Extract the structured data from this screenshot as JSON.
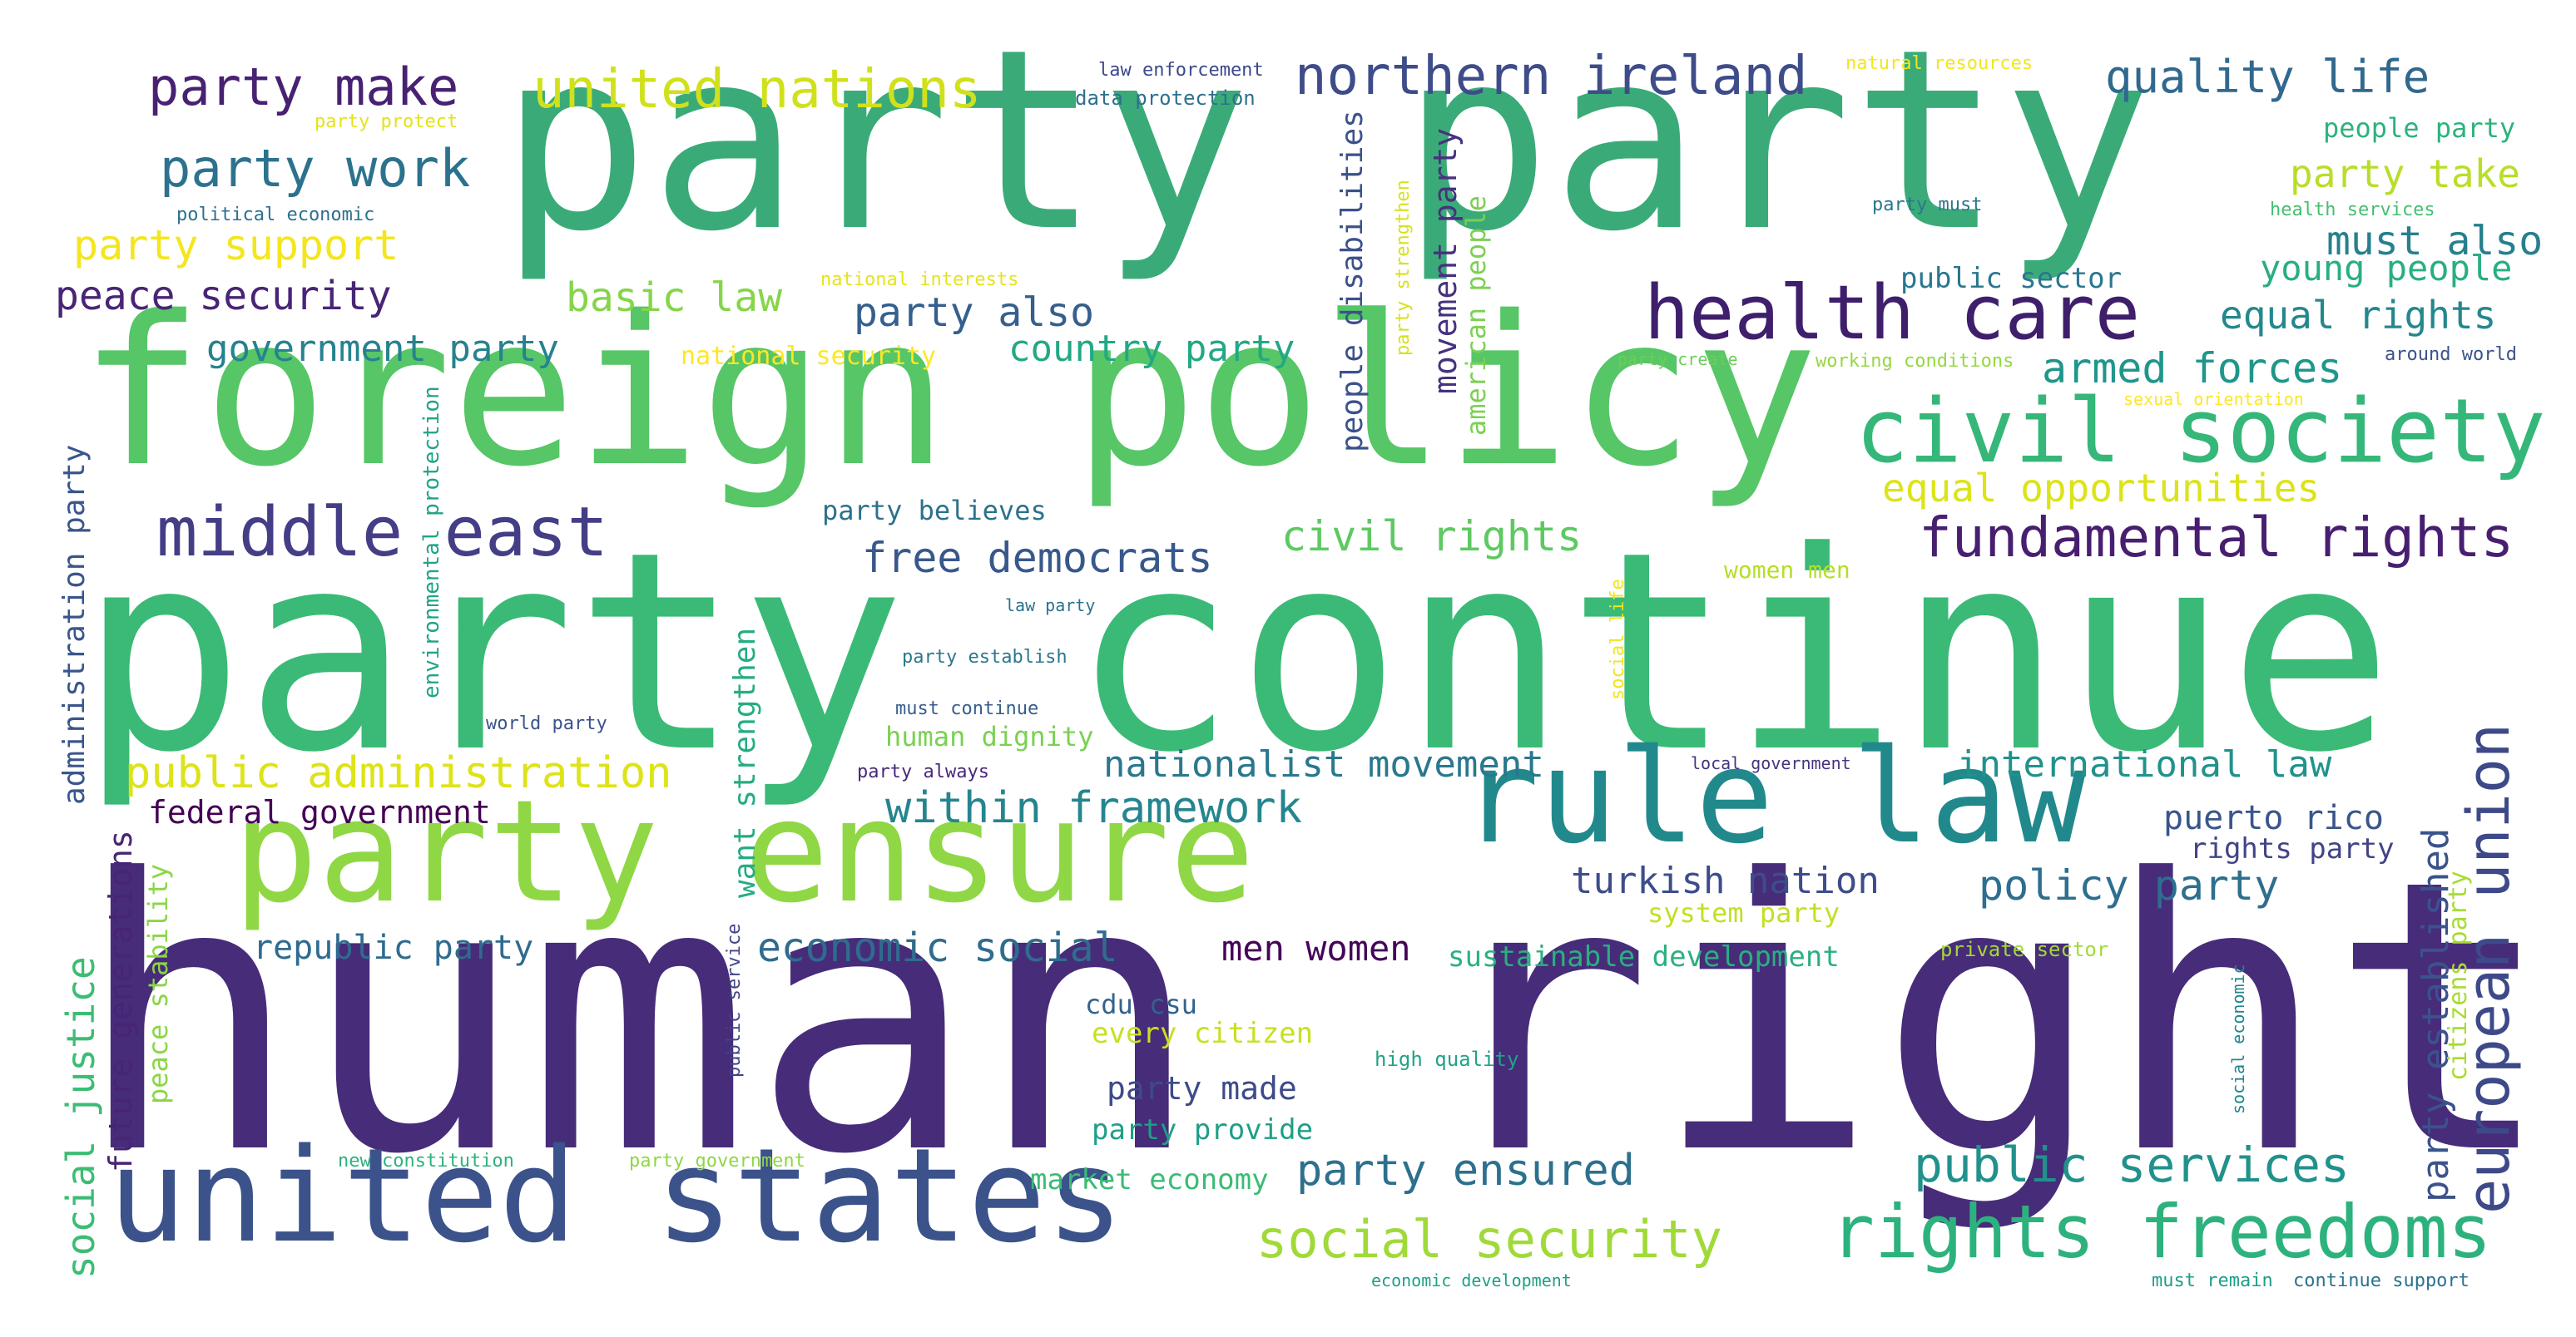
{
  "words": [
    {
      "id": "w-human-rights",
      "text": "human rights",
      "color": "#472c7a"
    },
    {
      "id": "w-party-continue",
      "text": "party continue",
      "color": "#3aba76"
    },
    {
      "id": "w-party-party",
      "text": "party party",
      "color": "#3aab78"
    },
    {
      "id": "w-foreign-policy",
      "text": "foreign policy",
      "color": "#56c667"
    },
    {
      "id": "w-party-ensure",
      "text": "party ensure",
      "color": "#8fd744"
    },
    {
      "id": "w-united-states",
      "text": "united states",
      "color": "#3b528b"
    },
    {
      "id": "w-rule-law",
      "text": "rule law",
      "color": "#21898c"
    },
    {
      "id": "w-civil-society",
      "text": "civil society",
      "color": "#35b779"
    },
    {
      "id": "w-rights-freedoms",
      "text": "rights freedoms",
      "color": "#2db27d"
    },
    {
      "id": "w-health-care",
      "text": "health care",
      "color": "#3f1f6b"
    },
    {
      "id": "w-middle-east",
      "text": "middle east",
      "color": "#433e85"
    },
    {
      "id": "w-european-union",
      "text": "european union",
      "color": "#3e4989"
    },
    {
      "id": "w-fundamental-rights",
      "text": "fundamental rights",
      "color": "#481f70"
    },
    {
      "id": "w-northern-ireland",
      "text": "northern ireland",
      "color": "#3e4c8a"
    },
    {
      "id": "w-united-nations",
      "text": "united nations",
      "color": "#d0e11c"
    },
    {
      "id": "w-party-make",
      "text": "party make",
      "color": "#482173"
    },
    {
      "id": "w-party-work",
      "text": "party work",
      "color": "#2c728e"
    },
    {
      "id": "w-quality-life",
      "text": "quality life",
      "color": "#31688e"
    },
    {
      "id": "w-social-security",
      "text": "social security",
      "color": "#a0da39"
    },
    {
      "id": "w-public-services",
      "text": "public services",
      "color": "#21918c"
    },
    {
      "id": "w-party-ensured",
      "text": "party ensured",
      "color": "#2d708e"
    },
    {
      "id": "w-within-framework",
      "text": "within framework",
      "color": "#25858e"
    },
    {
      "id": "w-public-administration",
      "text": "public administration",
      "color": "#dde318"
    },
    {
      "id": "w-free-democrats",
      "text": "free democrats",
      "color": "#38588c"
    },
    {
      "id": "w-civil-rights",
      "text": "civil rights",
      "color": "#5ec962"
    },
    {
      "id": "w-economic-social",
      "text": "economic social",
      "color": "#2f6c8e"
    },
    {
      "id": "w-nationalist-movement",
      "text": "nationalist movement",
      "color": "#2a788e"
    },
    {
      "id": "w-international-law",
      "text": "international law",
      "color": "#20928c"
    },
    {
      "id": "w-policy-party",
      "text": "policy party",
      "color": "#2e6e8e"
    },
    {
      "id": "w-turkish-nation",
      "text": "turkish nation",
      "color": "#3d4d8a"
    },
    {
      "id": "w-armed-forces",
      "text": "armed forces",
      "color": "#1f968b"
    },
    {
      "id": "w-equal-opportunities",
      "text": "equal opportunities",
      "color": "#dce319"
    },
    {
      "id": "w-party-support",
      "text": "party support",
      "color": "#f4e61e"
    },
    {
      "id": "w-peace-security",
      "text": "peace security",
      "color": "#482576"
    },
    {
      "id": "w-basic-law",
      "text": "basic law",
      "color": "#86d549"
    },
    {
      "id": "w-party-also",
      "text": "party also",
      "color": "#355f8d"
    },
    {
      "id": "w-country-party",
      "text": "country party",
      "color": "#22a884"
    },
    {
      "id": "w-government-party",
      "text": "government party",
      "color": "#26828e"
    },
    {
      "id": "w-party-take",
      "text": "party take",
      "color": "#b8de29"
    },
    {
      "id": "w-must-also",
      "text": "must also",
      "color": "#277f8e"
    },
    {
      "id": "w-young-people",
      "text": "young people",
      "color": "#29af7f"
    },
    {
      "id": "w-equal-rights",
      "text": "equal rights",
      "color": "#23888e"
    },
    {
      "id": "w-public-sector",
      "text": "public sector",
      "color": "#2a768e"
    },
    {
      "id": "w-people-party",
      "text": "people party",
      "color": "#2db27d"
    },
    {
      "id": "w-federal-government",
      "text": "federal government",
      "color": "#440154"
    },
    {
      "id": "w-republic-party",
      "text": "republic party",
      "color": "#2f6b8e"
    },
    {
      "id": "w-men-women",
      "text": "men women",
      "color": "#450559"
    },
    {
      "id": "w-sustainable-development",
      "text": "sustainable development",
      "color": "#2ab07f"
    },
    {
      "id": "w-puerto-rico",
      "text": "puerto rico",
      "color": "#39558c"
    },
    {
      "id": "w-rights-party",
      "text": "rights party",
      "color": "#414487"
    },
    {
      "id": "w-system-party",
      "text": "system party",
      "color": "#c2df23"
    },
    {
      "id": "w-cdu-csu",
      "text": "cdu csu",
      "color": "#33638d"
    },
    {
      "id": "w-every-citizen",
      "text": "every citizen",
      "color": "#c8e020"
    },
    {
      "id": "w-party-made",
      "text": "party made",
      "color": "#3e4a89"
    },
    {
      "id": "w-party-provide",
      "text": "party provide",
      "color": "#1f9f88"
    },
    {
      "id": "w-market-economy",
      "text": "market economy",
      "color": "#3bbb75"
    },
    {
      "id": "w-human-dignity",
      "text": "human dignity",
      "color": "#7ad151"
    },
    {
      "id": "w-party-believes",
      "text": "party believes",
      "color": "#2c718e"
    },
    {
      "id": "w-women-men",
      "text": "women men",
      "color": "#b5de2b"
    },
    {
      "id": "w-high-quality",
      "text": "high quality",
      "color": "#20a386"
    },
    {
      "id": "w-private-sector",
      "text": "private sector",
      "color": "#a2da37"
    },
    {
      "id": "w-national-security",
      "text": "national security",
      "color": "#fde725"
    },
    {
      "id": "w-law-enforcement",
      "text": "law enforcement",
      "color": "#3e4989"
    },
    {
      "id": "w-data-protection",
      "text": "data protection",
      "color": "#2d708e"
    },
    {
      "id": "w-natural-resources",
      "text": "natural resources",
      "color": "#f4e61e"
    },
    {
      "id": "w-party-protect",
      "text": "party protect",
      "color": "#e2e418"
    },
    {
      "id": "w-political-economic",
      "text": "political economic",
      "color": "#2d708e"
    },
    {
      "id": "w-national-interests",
      "text": "national interests",
      "color": "#e5e419"
    },
    {
      "id": "w-party-must",
      "text": "party must",
      "color": "#2a768e"
    },
    {
      "id": "w-health-services",
      "text": "health services",
      "color": "#44bf70"
    },
    {
      "id": "w-party-create",
      "text": "party create",
      "color": "#6ccd5a"
    },
    {
      "id": "w-working-conditions",
      "text": "working conditions",
      "color": "#95d840"
    },
    {
      "id": "w-around-world",
      "text": "around world",
      "color": "#3b528b"
    },
    {
      "id": "w-sexual-orientation",
      "text": "sexual orientation",
      "color": "#fde725"
    },
    {
      "id": "w-law-party",
      "text": "law party",
      "color": "#2c728e"
    },
    {
      "id": "w-party-establish",
      "text": "party establish",
      "color": "#2a788e"
    },
    {
      "id": "w-must-continue",
      "text": "must continue",
      "color": "#365d8d"
    },
    {
      "id": "w-world-party",
      "text": "world party",
      "color": "#3b528b"
    },
    {
      "id": "w-party-always",
      "text": "party always",
      "color": "#482878"
    },
    {
      "id": "w-local-government",
      "text": "local government",
      "color": "#46337e"
    },
    {
      "id": "w-new-constitution",
      "text": "new constitution",
      "color": "#2db27d"
    },
    {
      "id": "w-party-government",
      "text": "party government",
      "color": "#8fd744"
    },
    {
      "id": "w-economic-development",
      "text": "economic development",
      "color": "#1fa088"
    },
    {
      "id": "w-must-remain",
      "text": "must remain",
      "color": "#1f9e89"
    },
    {
      "id": "w-continue-support",
      "text": "continue support",
      "color": "#2c728e"
    },
    {
      "id": "w-administration-party",
      "text": "administration party",
      "color": "#39568c"
    },
    {
      "id": "w-environmental-protection",
      "text": "environmental protection",
      "color": "#20a486"
    },
    {
      "id": "w-want-strengthen",
      "text": "want strengthen",
      "color": "#25ac82"
    },
    {
      "id": "w-social-justice",
      "text": "social justice",
      "color": "#3dbc74"
    },
    {
      "id": "w-future-generations",
      "text": "future generations",
      "color": "#482475"
    },
    {
      "id": "w-peace-stability",
      "text": "peace stability",
      "color": "#8bd646"
    },
    {
      "id": "w-public-service",
      "text": "public service",
      "color": "#404387"
    },
    {
      "id": "w-people-disabilities",
      "text": "people disabilities",
      "color": "#3b518b"
    },
    {
      "id": "w-party-strengthen",
      "text": "party strengthen",
      "color": "#d5e21a"
    },
    {
      "id": "w-movement-party",
      "text": "movement party",
      "color": "#46327e"
    },
    {
      "id": "w-american-people",
      "text": "american people",
      "color": "#7ad151"
    },
    {
      "id": "w-social-life",
      "text": "social life",
      "color": "#f1e51d"
    },
    {
      "id": "w-party-established",
      "text": "party established",
      "color": "#3b528b"
    },
    {
      "id": "w-citizens-party",
      "text": "citizens party",
      "color": "#a8db34"
    },
    {
      "id": "w-social-economic",
      "text": "social economic",
      "color": "#24868e"
    }
  ]
}
